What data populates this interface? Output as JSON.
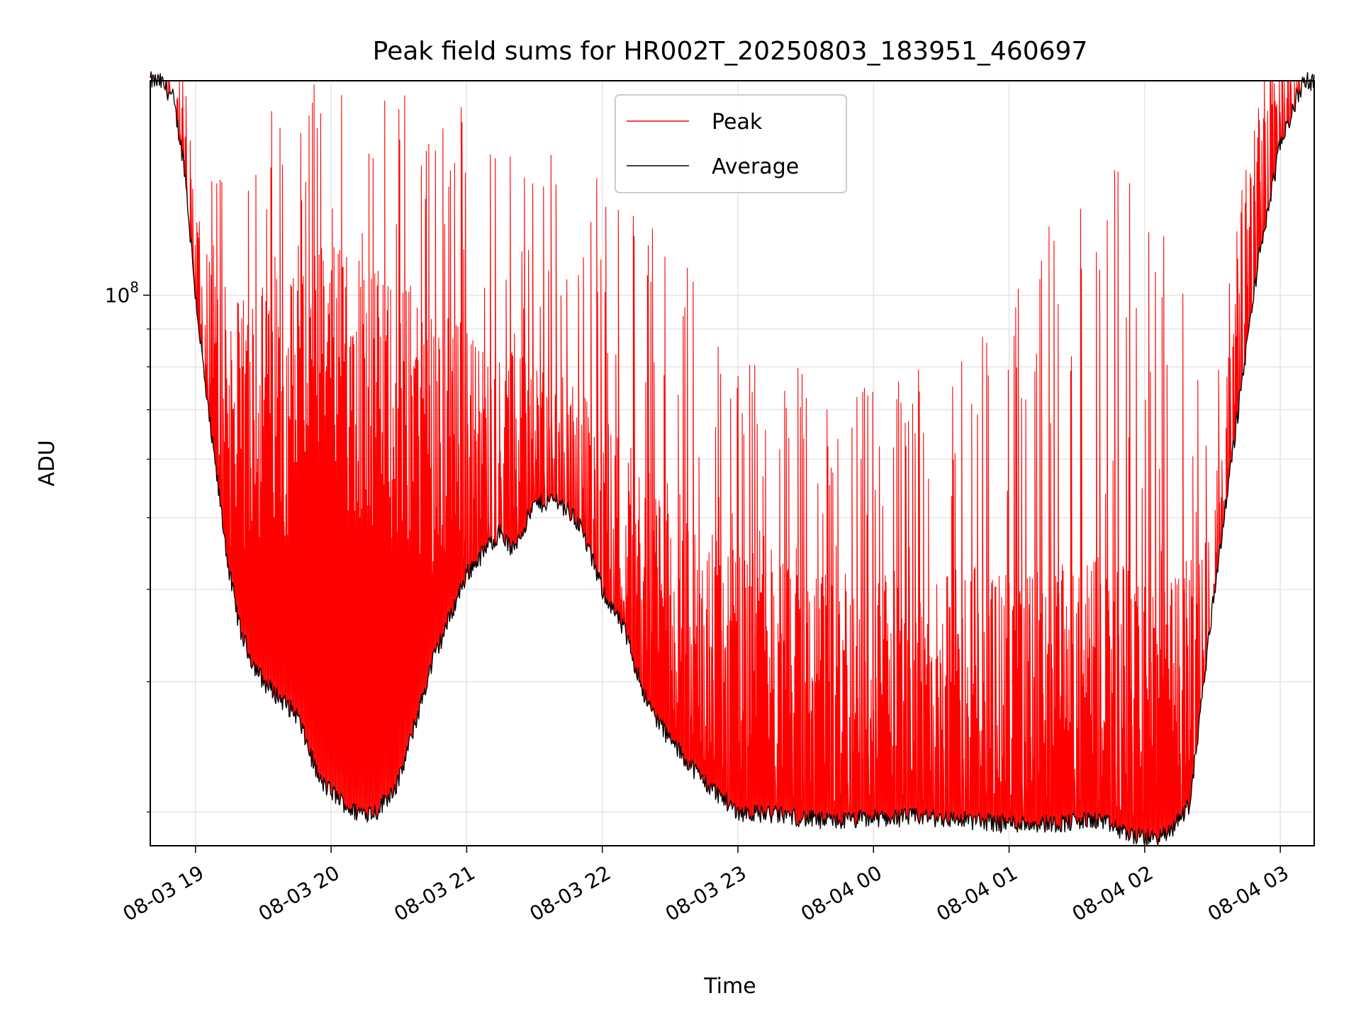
{
  "chart_data": {
    "type": "line",
    "title": "Peak field sums for HR002T_20250803_183951_460697",
    "xlabel": "Time",
    "ylabel": "ADU",
    "y_scale": "log",
    "ylim": [
      18000000,
      195000000
    ],
    "xlim": [
      "2025-08-03 18:40",
      "2025-08-04 03:15"
    ],
    "grid": true,
    "legend_position": "top-center",
    "x_ticks": [
      "08-03 19",
      "08-03 20",
      "08-03 21",
      "08-03 22",
      "08-03 23",
      "08-04 00",
      "08-04 01",
      "08-04 02",
      "08-04 03"
    ],
    "x_tick_times": [
      "2025-08-03 19:00",
      "2025-08-03 20:00",
      "2025-08-03 21:00",
      "2025-08-03 22:00",
      "2025-08-03 23:00",
      "2025-08-04 00:00",
      "2025-08-04 01:00",
      "2025-08-04 02:00",
      "2025-08-04 03:00"
    ],
    "y_major_ticks": [
      {
        "value": 100000000,
        "label": "10",
        "exponent": "8"
      }
    ],
    "y_minor_ticks": [
      20000000,
      30000000,
      40000000,
      50000000,
      60000000,
      70000000,
      80000000,
      90000000
    ],
    "series": [
      {
        "name": "Peak",
        "color": "#ff0000",
        "envelope_note": "dense noisy spikes",
        "x": [
          "2025-08-03 18:45",
          "2025-08-03 18:55",
          "2025-08-03 19:00",
          "2025-08-03 19:10",
          "2025-08-03 19:20",
          "2025-08-03 19:30",
          "2025-08-03 19:45",
          "2025-08-03 20:00",
          "2025-08-03 20:15",
          "2025-08-03 20:30",
          "2025-08-03 20:45",
          "2025-08-03 21:00",
          "2025-08-03 21:15",
          "2025-08-03 21:30",
          "2025-08-03 21:45",
          "2025-08-03 22:00",
          "2025-08-03 22:15",
          "2025-08-03 22:30",
          "2025-08-03 22:45",
          "2025-08-03 23:00",
          "2025-08-03 23:15",
          "2025-08-03 23:30",
          "2025-08-03 23:45",
          "2025-08-04 00:00",
          "2025-08-04 00:15",
          "2025-08-04 00:30",
          "2025-08-04 00:45",
          "2025-08-04 01:00",
          "2025-08-04 01:15",
          "2025-08-04 01:30",
          "2025-08-04 01:45",
          "2025-08-04 02:00",
          "2025-08-04 02:15",
          "2025-08-04 02:30",
          "2025-08-04 02:45",
          "2025-08-04 03:00"
        ],
        "values_max": [
          190000000,
          175000000,
          160000000,
          155000000,
          150000000,
          175000000,
          195000000,
          195000000,
          195000000,
          195000000,
          190000000,
          185000000,
          165000000,
          160000000,
          150000000,
          145000000,
          135000000,
          120000000,
          100000000,
          85000000,
          80000000,
          80000000,
          78000000,
          75000000,
          78000000,
          82000000,
          90000000,
          95000000,
          130000000,
          130000000,
          160000000,
          140000000,
          110000000,
          70000000,
          160000000,
          190000000
        ],
        "values_typical": [
          190000000,
          150000000,
          95000000,
          75000000,
          70000000,
          75000000,
          80000000,
          85000000,
          80000000,
          75000000,
          70000000,
          65000000,
          60000000,
          60000000,
          55000000,
          50000000,
          45000000,
          40000000,
          35000000,
          32000000,
          32000000,
          30000000,
          30000000,
          30000000,
          30000000,
          30000000,
          31000000,
          30000000,
          31000000,
          31000000,
          32000000,
          30000000,
          30000000,
          38000000,
          110000000,
          190000000
        ]
      },
      {
        "name": "Average",
        "color": "#000000",
        "x": [
          "2025-08-03 18:40",
          "2025-08-03 18:45",
          "2025-08-03 18:50",
          "2025-08-03 18:55",
          "2025-08-03 19:00",
          "2025-08-03 19:05",
          "2025-08-03 19:10",
          "2025-08-03 19:15",
          "2025-08-03 19:20",
          "2025-08-03 19:25",
          "2025-08-03 19:30",
          "2025-08-03 19:45",
          "2025-08-03 19:55",
          "2025-08-03 20:10",
          "2025-08-03 20:20",
          "2025-08-03 20:30",
          "2025-08-03 20:45",
          "2025-08-03 21:00",
          "2025-08-03 21:15",
          "2025-08-03 21:20",
          "2025-08-03 21:30",
          "2025-08-03 21:40",
          "2025-08-03 21:50",
          "2025-08-03 22:00",
          "2025-08-03 22:10",
          "2025-08-03 22:20",
          "2025-08-03 22:30",
          "2025-08-03 22:45",
          "2025-08-03 23:00",
          "2025-08-03 23:20",
          "2025-08-03 23:40",
          "2025-08-04 00:00",
          "2025-08-04 00:20",
          "2025-08-04 00:40",
          "2025-08-04 01:00",
          "2025-08-04 01:20",
          "2025-08-04 01:40",
          "2025-08-04 01:50",
          "2025-08-04 02:00",
          "2025-08-04 02:10",
          "2025-08-04 02:20",
          "2025-08-04 02:30",
          "2025-08-04 02:40",
          "2025-08-04 02:50",
          "2025-08-04 03:00",
          "2025-08-04 03:10",
          "2025-08-04 03:15"
        ],
        "values": [
          195000000,
          194000000,
          185000000,
          150000000,
          100000000,
          72000000,
          55000000,
          42000000,
          35000000,
          32000000,
          30000000,
          27000000,
          22000000,
          20000000,
          20000000,
          22000000,
          32000000,
          42000000,
          48000000,
          45000000,
          52000000,
          53000000,
          49000000,
          40000000,
          35000000,
          28000000,
          25000000,
          22000000,
          20000000,
          19800000,
          19400000,
          19600000,
          19700000,
          19500000,
          19300000,
          19300000,
          19500000,
          18800000,
          18400000,
          18600000,
          20500000,
          38000000,
          65000000,
          110000000,
          160000000,
          194000000,
          195000000
        ]
      }
    ]
  }
}
